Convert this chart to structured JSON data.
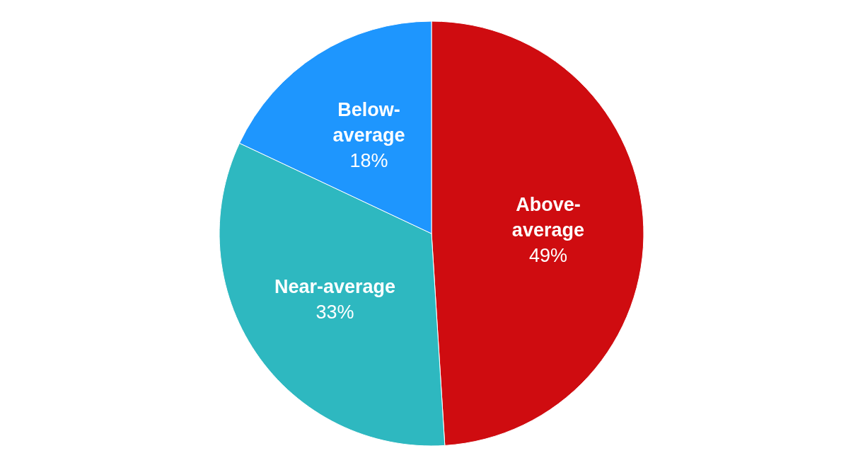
{
  "chart_data": {
    "type": "pie",
    "categories": [
      "Above-average",
      "Near-average",
      "Below-average"
    ],
    "values": [
      49,
      33,
      18
    ],
    "colors": [
      "#cf0c10",
      "#2eb8c0",
      "#1e96fe"
    ],
    "value_labels": [
      "49%",
      "33%",
      "18%"
    ]
  }
}
